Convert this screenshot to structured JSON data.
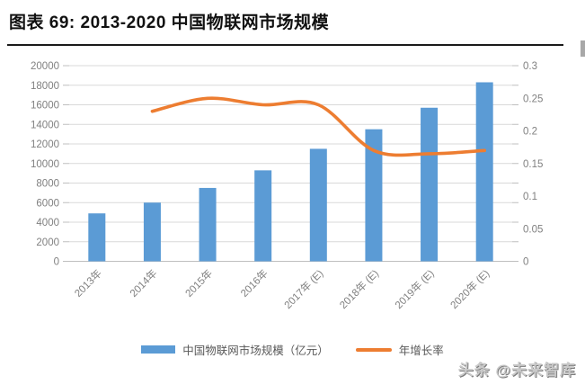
{
  "page": {
    "title": "图表 69: 2013-2020 中国物联网市场规模",
    "watermark": "头条 @未来智库"
  },
  "chart_data": {
    "type": "bar",
    "title": "图表 69: 2013-2020 中国物联网市场规模",
    "categories": [
      "2013年",
      "2014年",
      "2015年",
      "2016年",
      "2017年 (E)",
      "2018年 (E)",
      "2019年 (E)",
      "2020年 (E)"
    ],
    "series": [
      {
        "name": "中国物联网市场规模（亿元）",
        "type": "bar",
        "axis": "left",
        "color": "#5B9BD5",
        "values": [
          4900,
          6000,
          7500,
          9300,
          11500,
          13500,
          15700,
          18300
        ]
      },
      {
        "name": "年增长率",
        "type": "line",
        "axis": "right",
        "color": "#ED7D31",
        "values": [
          null,
          0.23,
          0.25,
          0.24,
          0.24,
          0.17,
          0.165,
          0.17
        ]
      }
    ],
    "left_axis": {
      "min": 0,
      "max": 20000,
      "step": 2000,
      "tick_labels": [
        "0",
        "2000",
        "4000",
        "6000",
        "8000",
        "10000",
        "12000",
        "14000",
        "16000",
        "18000",
        "20000"
      ]
    },
    "right_axis": {
      "min": 0,
      "max": 0.3,
      "step": 0.05,
      "tick_labels": [
        "0",
        "0.05",
        "0.1",
        "0.15",
        "0.2",
        "0.25",
        "0.3"
      ]
    },
    "grid": true,
    "legend_position": "bottom"
  },
  "legend": {
    "items": [
      {
        "label": "中国物联网市场规模（亿元）",
        "swatch": "bar",
        "color": "#5B9BD5"
      },
      {
        "label": "年增长率",
        "swatch": "line",
        "color": "#ED7D31"
      }
    ]
  },
  "colors": {
    "bar": "#5B9BD5",
    "line": "#ED7D31",
    "gridline": "#D9D9D9",
    "axis_line": "#BFBFBF",
    "tick_label": "#808080",
    "legend_text": "#595959",
    "title_text": "#111111"
  }
}
